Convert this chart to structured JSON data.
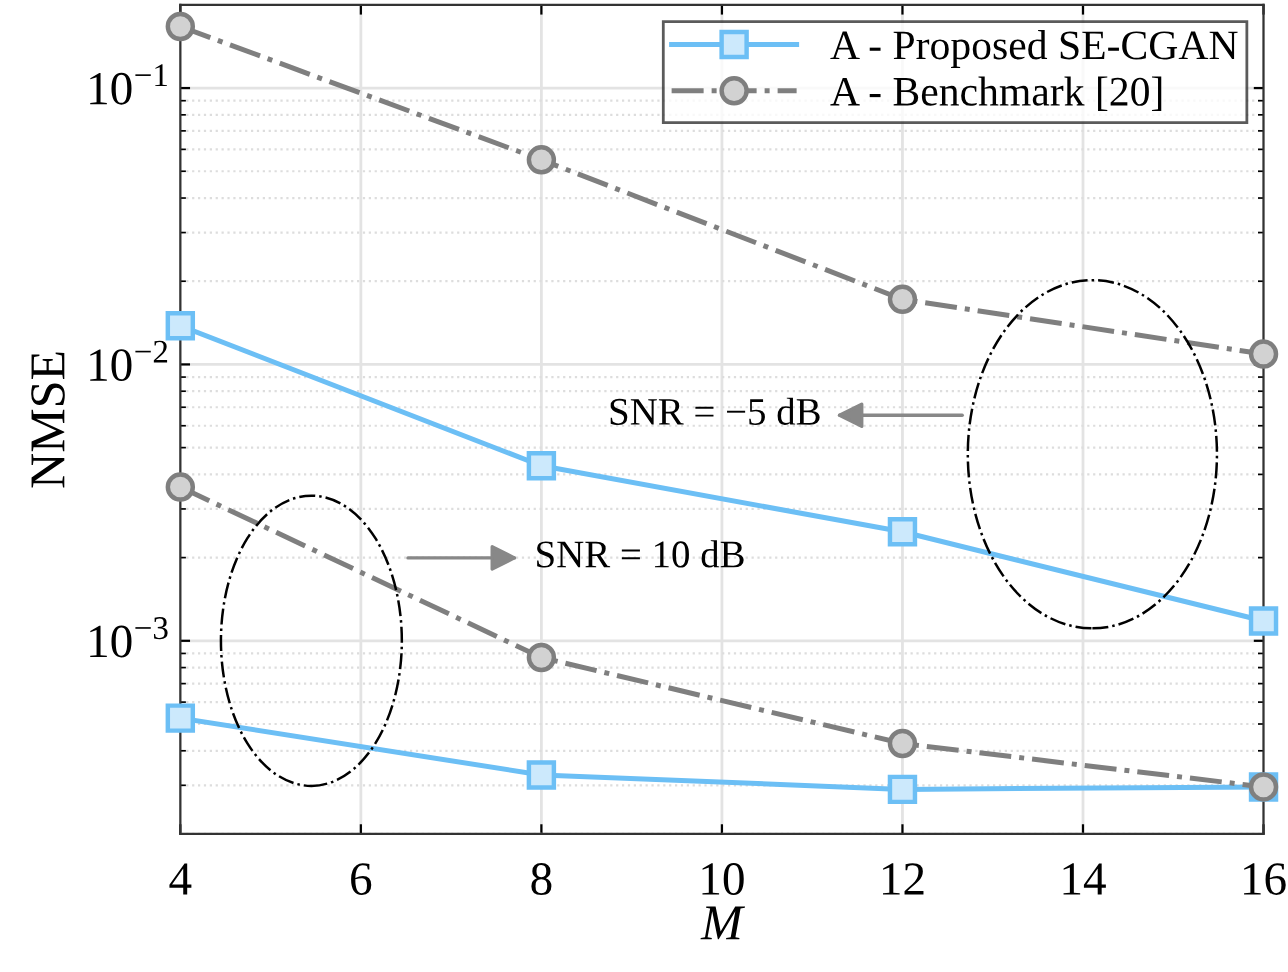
{
  "chart_data": {
    "type": "line",
    "xlabel": "M",
    "ylabel": "NMSE",
    "x": [
      4,
      8,
      12,
      16
    ],
    "series": [
      {
        "name": "A - Proposed SE-CGAN",
        "color": "#6cbff5",
        "marker": "square",
        "line_style": "solid",
        "values": [
          0.0138,
          0.0043,
          0.00248,
          0.00118
        ]
      },
      {
        "name": "A - Benchmark [20]",
        "color": "#7f7f7f",
        "marker": "circle",
        "line_style": "dashed",
        "values": [
          0.167,
          0.055,
          0.0172,
          0.0109
        ]
      },
      {
        "color": "#6cbff5",
        "marker": "square",
        "line_style": "solid",
        "values": [
          0.000525,
          0.000327,
          0.00029,
          0.000296
        ]
      },
      {
        "color": "#7f7f7f",
        "marker": "circle",
        "line_style": "dashed",
        "values": [
          0.0036,
          0.00087,
          0.000425,
          0.000296
        ]
      }
    ],
    "log": "y",
    "xlim": [
      4,
      16
    ],
    "xticks": [
      4,
      6,
      8,
      10,
      12,
      14,
      16
    ],
    "ylim": [
      0.0002,
      0.2
    ],
    "yticks": [
      {
        "value": 0.001,
        "label": "10$^{−3}$"
      },
      {
        "value": 0.01,
        "label": "10$^{−2}$"
      },
      {
        "value": 0.1,
        "label": "10$^{−1}$"
      }
    ],
    "grid": true,
    "legend": "top right",
    "annotations": [
      "SNR = −5 dB",
      "SNR = 10 dB"
    ]
  }
}
